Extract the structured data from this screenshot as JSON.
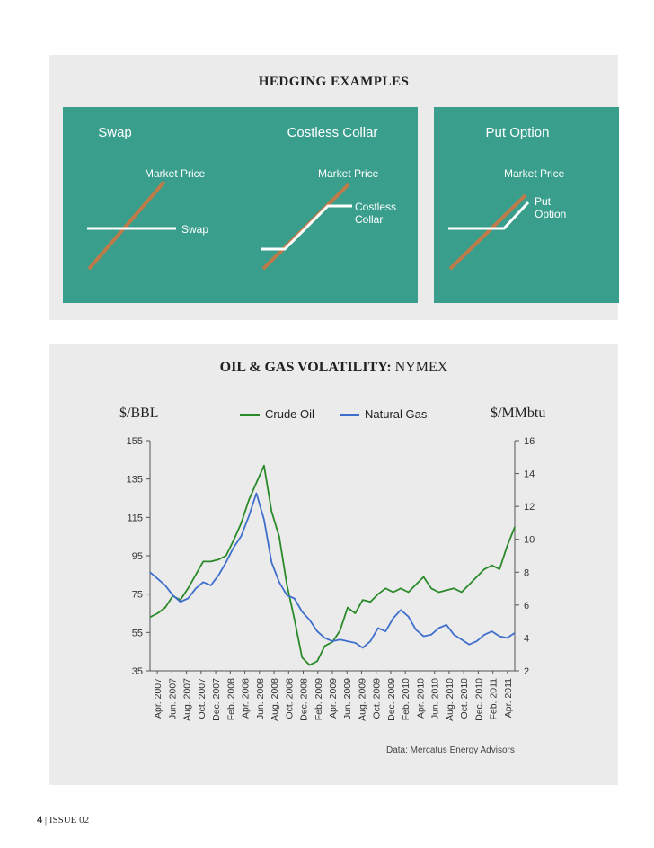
{
  "hedging": {
    "title": "HEDGING EXAMPLES",
    "boxes": [
      {
        "title": "Swap",
        "market_label": "Market Price",
        "instrument_label": "Swap"
      },
      {
        "title": "Costless Collar",
        "market_label": "Market Price",
        "instrument_label": "Costless Collar"
      },
      {
        "title": "Put Option",
        "market_label": "Market Price",
        "instrument_label": "Put Option"
      }
    ],
    "colors": {
      "box": "#3a9e8c",
      "market_line": "#c07a48",
      "instrument_line": "#ffffff"
    }
  },
  "footer": {
    "page": "4",
    "issue": "ISSUE 02"
  },
  "chart_data": {
    "type": "line",
    "title": "OIL & GAS VOLATILITY:",
    "subtitle": "NYMEX",
    "ylabel_left": "$/BBL",
    "ylabel_right": "$/MMbtu",
    "source": "Data: Mercatus Energy Advisors",
    "ylim_left": [
      35,
      155
    ],
    "ylim_right": [
      2,
      16
    ],
    "yticks_left": [
      35,
      55,
      75,
      95,
      115,
      135,
      155
    ],
    "yticks_right": [
      2,
      4,
      6,
      8,
      10,
      12,
      14,
      16
    ],
    "x_ticks": [
      "Apr. 2007",
      "Jun. 2007",
      "Aug. 2007",
      "Oct. 2007",
      "Dec. 2007",
      "Feb. 2008",
      "Apr. 2008",
      "Jun. 2008",
      "Aug. 2008",
      "Oct. 2008",
      "Dec. 2008",
      "Feb. 2009",
      "Apr. 2009",
      "Jun. 2009",
      "Aug. 2009",
      "Oct. 2009",
      "Dec. 2009",
      "Feb. 2010",
      "Apr. 2010",
      "Jun. 2010",
      "Aug. 2010",
      "Oct. 2010",
      "Dec. 2010",
      "Feb. 2011",
      "Apr. 2011"
    ],
    "grid": false,
    "legend_position": "top",
    "series": [
      {
        "name": "Crude Oil",
        "axis": "left",
        "color": "#2a8a2a",
        "x": [
          "Apr. 2007",
          "May 2007",
          "Jun. 2007",
          "Jul. 2007",
          "Aug. 2007",
          "Sep. 2007",
          "Oct. 2007",
          "Nov. 2007",
          "Dec. 2007",
          "Jan. 2008",
          "Feb. 2008",
          "Mar. 2008",
          "Apr. 2008",
          "May 2008",
          "Jun. 2008",
          "Jul. 2008",
          "Aug. 2008",
          "Sep. 2008",
          "Oct. 2008",
          "Nov. 2008",
          "Dec. 2008",
          "Jan. 2009",
          "Feb. 2009",
          "Mar. 2009",
          "Apr. 2009",
          "May 2009",
          "Jun. 2009",
          "Jul. 2009",
          "Aug. 2009",
          "Sep. 2009",
          "Oct. 2009",
          "Nov. 2009",
          "Dec. 2009",
          "Jan. 2010",
          "Feb. 2010",
          "Mar. 2010",
          "Apr. 2010",
          "May 2010",
          "Jun. 2010",
          "Jul. 2010",
          "Aug. 2010",
          "Sep. 2010",
          "Oct. 2010",
          "Nov. 2010",
          "Dec. 2010",
          "Jan. 2011",
          "Feb. 2011",
          "Mar. 2011",
          "Apr. 2011"
        ],
        "values": [
          63,
          65,
          68,
          74,
          72,
          78,
          85,
          92,
          92,
          93,
          95,
          103,
          112,
          124,
          133,
          142,
          118,
          105,
          80,
          62,
          42,
          38,
          40,
          48,
          50,
          56,
          68,
          65,
          72,
          71,
          75,
          78,
          76,
          78,
          76,
          80,
          84,
          78,
          76,
          77,
          78,
          76,
          80,
          84,
          88,
          90,
          88,
          100,
          110
        ]
      },
      {
        "name": "Natural Gas",
        "axis": "right",
        "color": "#3f6fcc",
        "x": [
          "Apr. 2007",
          "May 2007",
          "Jun. 2007",
          "Jul. 2007",
          "Aug. 2007",
          "Sep. 2007",
          "Oct. 2007",
          "Nov. 2007",
          "Dec. 2007",
          "Jan. 2008",
          "Feb. 2008",
          "Mar. 2008",
          "Apr. 2008",
          "May 2008",
          "Jun. 2008",
          "Jul. 2008",
          "Aug. 2008",
          "Sep. 2008",
          "Oct. 2008",
          "Nov. 2008",
          "Dec. 2008",
          "Jan. 2009",
          "Feb. 2009",
          "Mar. 2009",
          "Apr. 2009",
          "May 2009",
          "Jun. 2009",
          "Jul. 2009",
          "Aug. 2009",
          "Sep. 2009",
          "Oct. 2009",
          "Nov. 2009",
          "Dec. 2009",
          "Jan. 2010",
          "Feb. 2010",
          "Mar. 2010",
          "Apr. 2010",
          "May 2010",
          "Jun. 2010",
          "Jul. 2010",
          "Aug. 2010",
          "Sep. 2010",
          "Oct. 2010",
          "Nov. 2010",
          "Dec. 2010",
          "Jan. 2011",
          "Feb. 2011",
          "Mar. 2011",
          "Apr. 2011"
        ],
        "values": [
          8.0,
          7.6,
          7.2,
          6.6,
          6.2,
          6.4,
          7.0,
          7.4,
          7.2,
          7.8,
          8.6,
          9.5,
          10.2,
          11.4,
          12.8,
          11.2,
          8.6,
          7.4,
          6.6,
          6.4,
          5.6,
          5.1,
          4.4,
          4.0,
          3.8,
          3.9,
          3.8,
          3.7,
          3.4,
          3.8,
          4.6,
          4.4,
          5.2,
          5.7,
          5.3,
          4.5,
          4.1,
          4.2,
          4.6,
          4.8,
          4.2,
          3.9,
          3.6,
          3.8,
          4.2,
          4.4,
          4.1,
          4.0,
          4.3
        ]
      }
    ]
  }
}
